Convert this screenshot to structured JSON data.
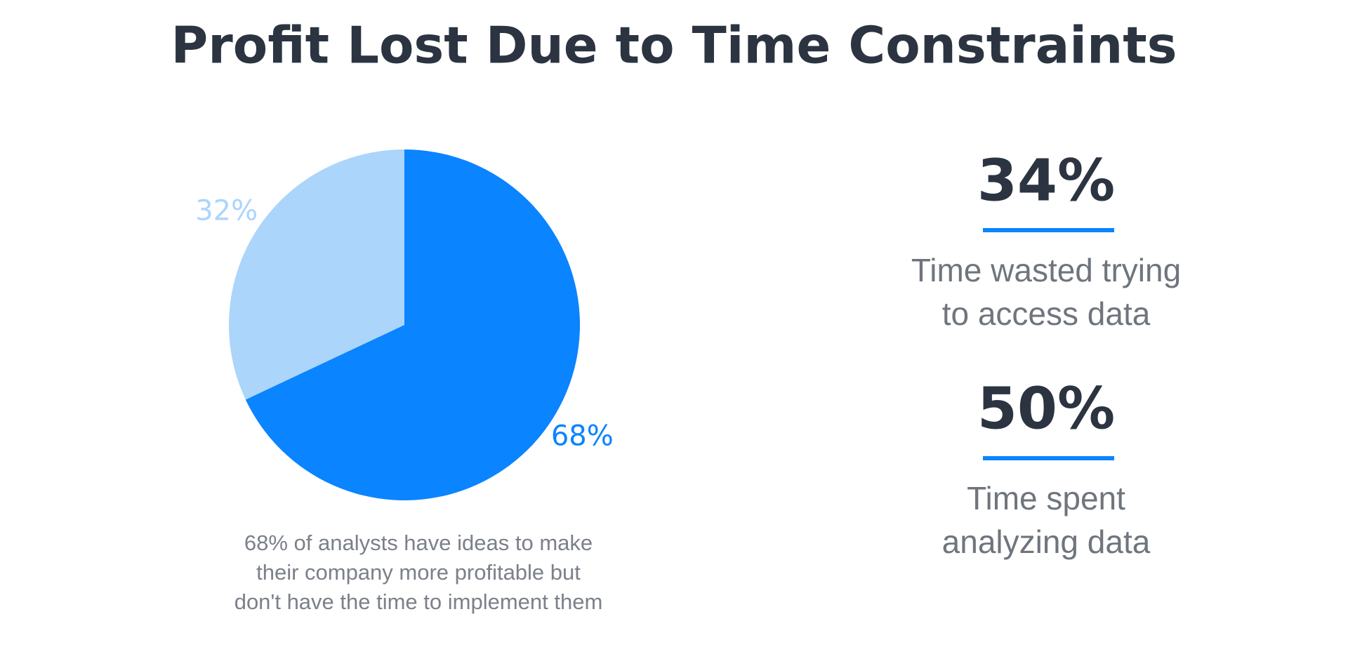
{
  "chart_data": {
    "type": "pie",
    "title": "Profit Lost Due to Time Constraints",
    "values": [
      68,
      32
    ],
    "value_labels": [
      "68%",
      "32%"
    ],
    "colors": [
      "#0a84ff",
      "#abd5fb"
    ],
    "caption": [
      "68% of analysts have ideas to make",
      "their company more profitable but",
      "don't have the time to implement them"
    ]
  },
  "stats": [
    {
      "figure": "34%",
      "lines": [
        "Time wasted trying",
        "to access data"
      ]
    },
    {
      "figure": "50%",
      "lines": [
        "Time spent",
        "analyzing data"
      ]
    }
  ]
}
